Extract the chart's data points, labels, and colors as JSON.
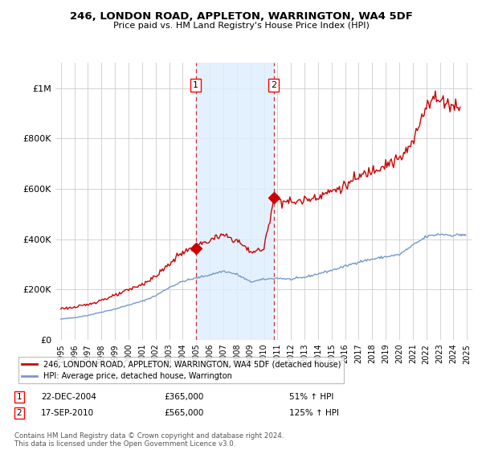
{
  "title": "246, LONDON ROAD, APPLETON, WARRINGTON, WA4 5DF",
  "subtitle": "Price paid vs. HM Land Registry's House Price Index (HPI)",
  "ylim": [
    0,
    1100000
  ],
  "yticks": [
    0,
    200000,
    400000,
    600000,
    800000,
    1000000
  ],
  "ytick_labels": [
    "£0",
    "£200K",
    "£400K",
    "£600K",
    "£800K",
    "£1M"
  ],
  "background_color": "#ffffff",
  "grid_color": "#cccccc",
  "sale1_date": "22-DEC-2004",
  "sale1_price": 365000,
  "sale1_pct": "51%",
  "sale2_date": "17-SEP-2010",
  "sale2_price": 565000,
  "sale2_pct": "125%",
  "sale1_year": 2004.97,
  "sale2_year": 2010.72,
  "legend_label1": "246, LONDON ROAD, APPLETON, WARRINGTON, WA4 5DF (detached house)",
  "legend_label2": "HPI: Average price, detached house, Warrington",
  "footer": "Contains HM Land Registry data © Crown copyright and database right 2024.\nThis data is licensed under the Open Government Licence v3.0.",
  "line_color_house": "#cc0000",
  "line_color_hpi": "#7799cc",
  "shading_color": "#ddeeff",
  "xticks": [
    1995,
    1996,
    1997,
    1998,
    1999,
    2000,
    2001,
    2002,
    2003,
    2004,
    2005,
    2006,
    2007,
    2008,
    2009,
    2010,
    2011,
    2012,
    2013,
    2014,
    2015,
    2016,
    2017,
    2018,
    2019,
    2020,
    2021,
    2022,
    2023,
    2024,
    2025
  ]
}
